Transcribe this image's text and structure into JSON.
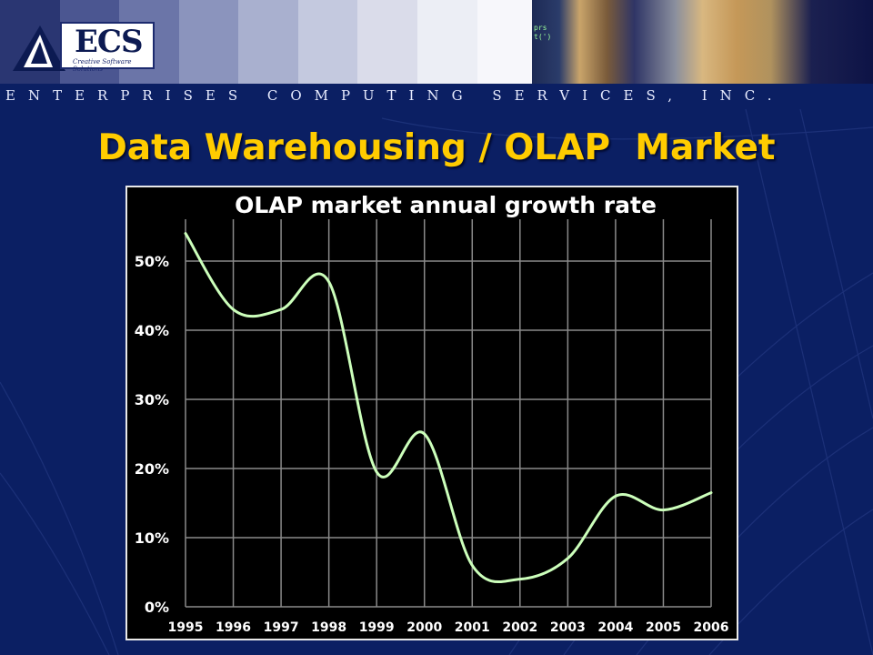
{
  "logo": {
    "text": "ECS",
    "tagline": "Creative Software Solutions"
  },
  "company_banner": "ENTERPRISES COMPUTING SERVICES, INC.",
  "slide_title": "Data Warehousing / OLAP  Market",
  "photo_strip_text": [
    "prs",
    "t(')"
  ],
  "colors": {
    "title": "#ffcc00",
    "background": "#0b1f63",
    "line": "#ccffbb",
    "grid": "#8a8a8a"
  },
  "chart_data": {
    "type": "line",
    "title": "OLAP market annual growth rate",
    "xlabel": "",
    "ylabel": "",
    "x": [
      "1995",
      "1996",
      "1997",
      "1998",
      "1999",
      "2000",
      "2001",
      "2002",
      "2003",
      "2004",
      "2005",
      "2006"
    ],
    "series": [
      {
        "values": [
          54,
          43,
          43,
          47,
          19.5,
          25,
          6,
          4,
          7,
          16,
          14,
          16.5
        ]
      }
    ],
    "ylim": [
      0,
      55
    ],
    "yticks": [
      0,
      10,
      20,
      30,
      40,
      50
    ],
    "ytick_labels": [
      "0%",
      "10%",
      "20%",
      "30%",
      "40%",
      "50%"
    ],
    "grid": true,
    "legend": "none"
  }
}
